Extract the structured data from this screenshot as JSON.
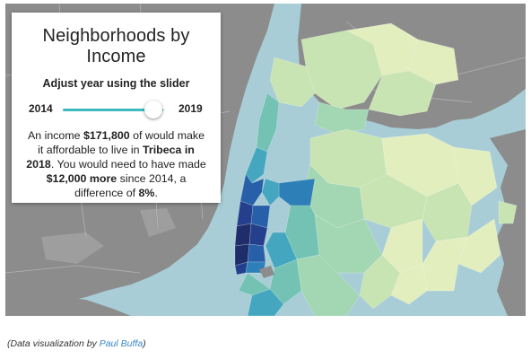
{
  "panel": {
    "title": "Neighborhoods by Income",
    "subtitle": "Adjust year using the slider",
    "slider": {
      "start_year": "2014",
      "end_year": "2019",
      "value_fraction": 0.9
    },
    "sentence": {
      "p1": "An income ",
      "income": "$171,800",
      "p2": " of would make it affordable to live in ",
      "place_year": "Tribeca in 2018",
      "p3": ". You would need to have made ",
      "more": "$12,000 more",
      "p4": " since 2014, a difference of ",
      "pct": "8%",
      "p5": "."
    }
  },
  "credit": {
    "prefix": "(Data visualization by ",
    "author": "Paul Buffa",
    "suffix": ")"
  },
  "colors": {
    "water": "#a9cdd6",
    "land": "#8c8c8c",
    "park": "#9e9e9e",
    "road": "#b3b3b3",
    "slider_accent": "#3db9c0",
    "link": "#3a86c8",
    "income_scale": [
      "#e3eebe",
      "#c8e4b3",
      "#a3d6b2",
      "#73c2b4",
      "#45a6c0",
      "#2d7fb8",
      "#275fa8",
      "#243f8c",
      "#1f2d6b"
    ]
  }
}
